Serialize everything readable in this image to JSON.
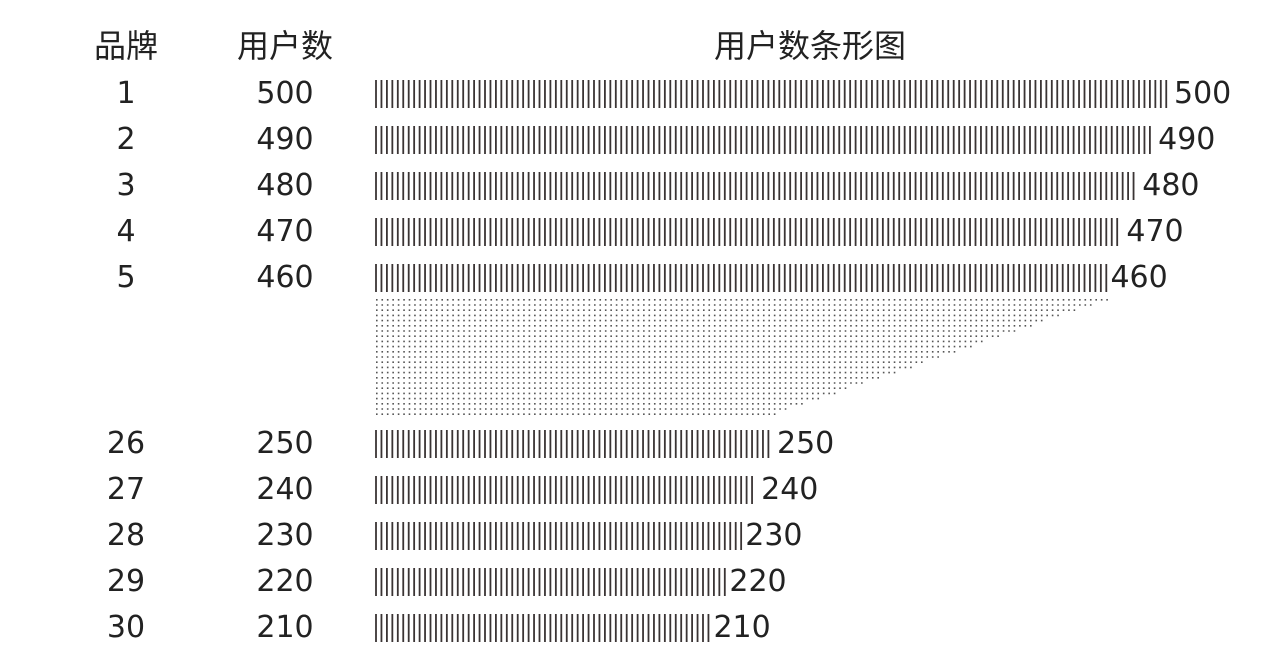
{
  "chart_data": {
    "type": "bar",
    "orientation": "horizontal",
    "headers": {
      "brand": "品牌",
      "users": "用户数",
      "bar": "用户数条形图"
    },
    "rows": [
      {
        "brand": "1",
        "users": "500",
        "value": 500,
        "label": "500"
      },
      {
        "brand": "2",
        "users": "490",
        "value": 490,
        "label": "490"
      },
      {
        "brand": "3",
        "users": "480",
        "value": 480,
        "label": "480"
      },
      {
        "brand": "4",
        "users": "470",
        "value": 470,
        "label": "470"
      },
      {
        "brand": "5",
        "users": "460",
        "value": 460,
        "label": "460"
      },
      {
        "brand": "26",
        "users": "250",
        "value": 250,
        "label": "250"
      },
      {
        "brand": "27",
        "users": "240",
        "value": 240,
        "label": "240"
      },
      {
        "brand": "28",
        "users": "230",
        "value": 230,
        "label": "230"
      },
      {
        "brand": "29",
        "users": "220",
        "value": 220,
        "label": "220"
      },
      {
        "brand": "30",
        "users": "210",
        "value": 210,
        "label": "210"
      }
    ],
    "omitted_rows_indicator": "dotted-fade",
    "grid": false,
    "legend": "none",
    "colors": {
      "text": "#222222",
      "bar_tick": "#3a3434",
      "dot": "#555555"
    }
  }
}
